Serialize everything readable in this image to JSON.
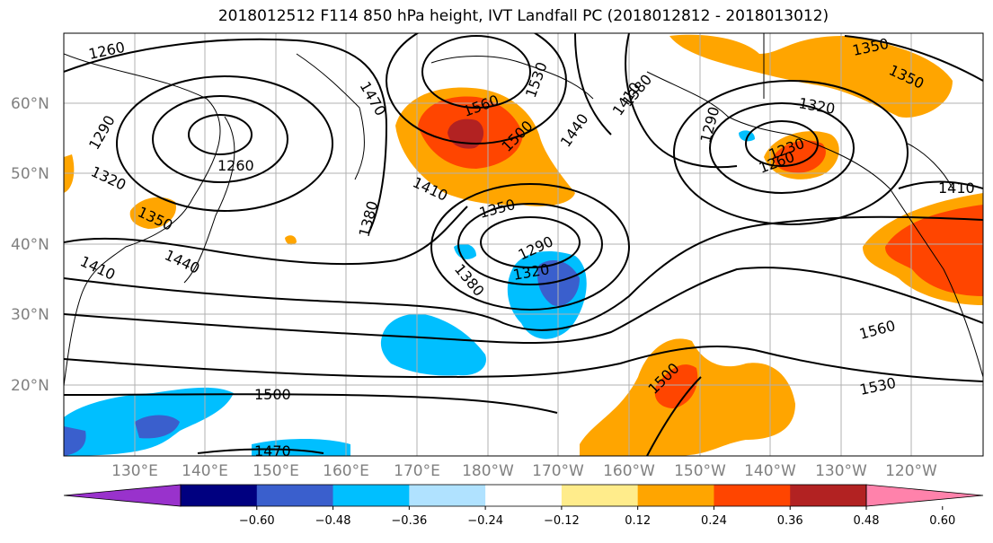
{
  "title": "2018012512 F114 850 hPa height, IVT Landfall PC (2018012812 - 2018013012)",
  "lat_labels": [
    "60°N",
    "50°N",
    "40°N",
    "30°N",
    "20°N"
  ],
  "lon_labels": [
    "130°E",
    "140°E",
    "150°E",
    "160°E",
    "170°E",
    "180°W",
    "170°W",
    "160°W",
    "150°W",
    "140°W",
    "130°W",
    "120°W"
  ],
  "contour_labels": [
    "1260",
    "1290",
    "1320",
    "1350",
    "1260",
    "1410",
    "1440",
    "1470",
    "1410",
    "1380",
    "1440",
    "1560",
    "1530",
    "1500",
    "1410",
    "1350",
    "1290",
    "1320",
    "1380",
    "1380",
    "1290",
    "1320",
    "1230",
    "1260",
    "1350",
    "1350",
    "1410",
    "1560",
    "1530",
    "1500",
    "1500",
    "1470"
  ],
  "colorbar": {
    "ticks": [
      "−0.60",
      "−0.48",
      "−0.36",
      "−0.24",
      "−0.12",
      "0.12",
      "0.24",
      "0.36",
      "0.48",
      "0.60"
    ],
    "colors": [
      "#9932CC",
      "#000080",
      "#3A5FCD",
      "#00BFFF",
      "#B0E2FF",
      "#FFFFFF",
      "#FFEC8B",
      "#FFA500",
      "#FF4500",
      "#B22222",
      "#FF82AB"
    ]
  }
}
